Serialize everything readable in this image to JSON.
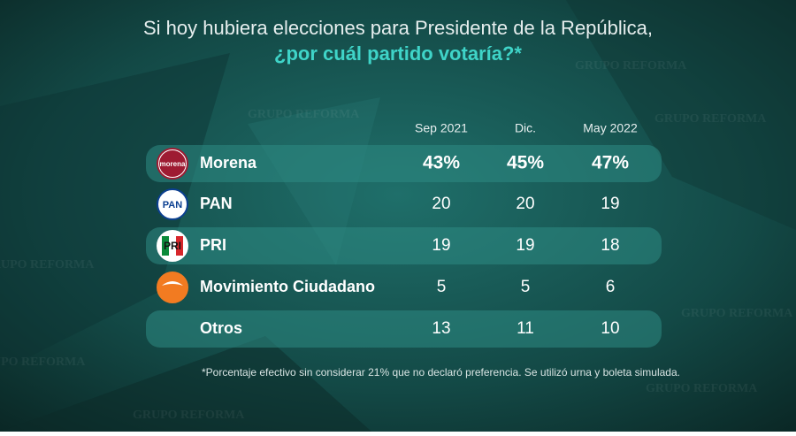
{
  "header": {
    "title": "Si hoy hubiera elecciones para Presidente de la República,",
    "subtitle": "¿por cuál partido votaría?*"
  },
  "watermark": "GRUPO REFORMA",
  "table": {
    "columns": [
      "Sep 2021",
      "Dic.",
      "May 2022"
    ],
    "rows": [
      {
        "party": "Morena",
        "logo": "morena",
        "values": [
          43,
          45,
          47
        ],
        "value_labels": [
          "43%",
          "45%",
          "47%"
        ]
      },
      {
        "party": "PAN",
        "logo": "PAN",
        "values": [
          20,
          20,
          19
        ]
      },
      {
        "party": "PRI",
        "logo": "PRI",
        "values": [
          19,
          19,
          18
        ]
      },
      {
        "party": "Movimiento Ciudadano",
        "values": [
          5,
          5,
          6
        ]
      },
      {
        "party": "Otros",
        "values": [
          13,
          11,
          10
        ]
      }
    ]
  },
  "footnote": "*Porcentaje efectivo sin considerar 21% que no declaró preferencia. Se utilizó urna y boleta simulada."
}
